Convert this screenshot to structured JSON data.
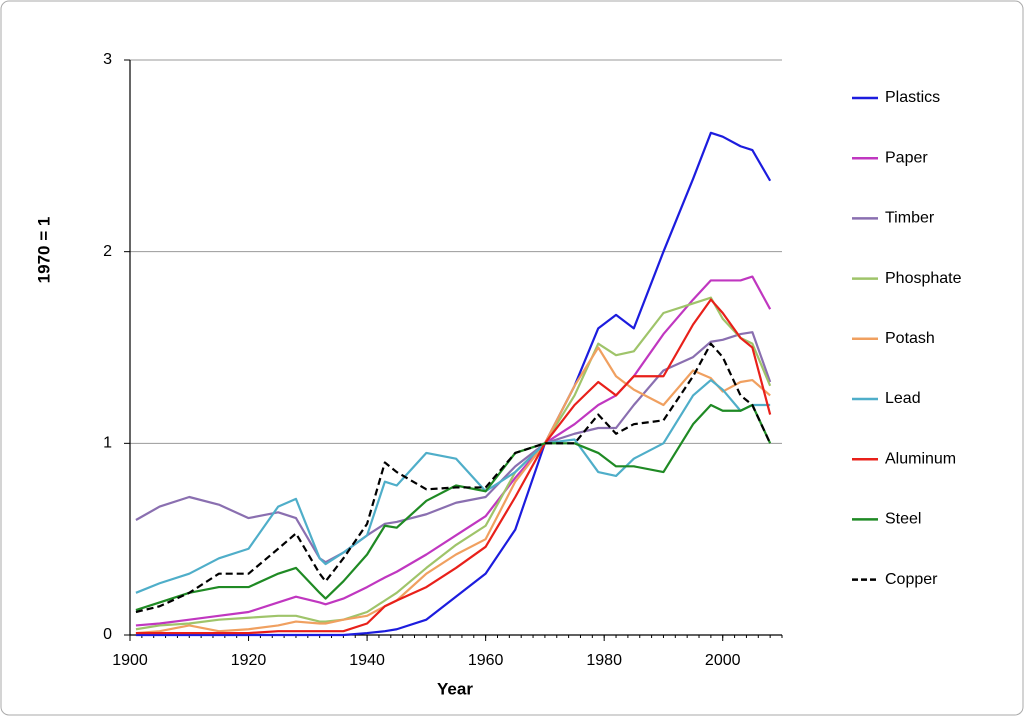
{
  "chart_data": {
    "type": "line",
    "xlabel": "Year",
    "ylabel": "1970 = 1",
    "x": [
      1901,
      1905,
      1910,
      1915,
      1920,
      1925,
      1928,
      1932,
      1933,
      1936,
      1940,
      1943,
      1945,
      1950,
      1955,
      1960,
      1965,
      1970,
      1975,
      1979,
      1982,
      1985,
      1990,
      1995,
      1998,
      2000,
      2003,
      2005,
      2008
    ],
    "xlim": [
      1900,
      2010
    ],
    "xticks": [
      1900,
      1920,
      1940,
      1960,
      1980,
      2000
    ],
    "ylim": [
      0,
      3
    ],
    "yticks": [
      0,
      1,
      2,
      3
    ],
    "grid": true,
    "legend": "right",
    "series": [
      {
        "name": "Plastics",
        "color": "#1c1cde",
        "values": [
          0,
          0,
          0,
          0,
          0,
          0,
          0,
          0,
          0,
          0,
          0.01,
          0.02,
          0.03,
          0.08,
          0.2,
          0.32,
          0.55,
          1.0,
          1.3,
          1.6,
          1.67,
          1.6,
          2.0,
          2.38,
          2.62,
          2.6,
          2.55,
          2.53,
          2.37
        ]
      },
      {
        "name": "Paper",
        "color": "#c037c0",
        "values": [
          0.05,
          0.06,
          0.08,
          0.1,
          0.12,
          0.17,
          0.2,
          0.17,
          0.16,
          0.19,
          0.25,
          0.3,
          0.33,
          0.42,
          0.52,
          0.62,
          0.82,
          1.0,
          1.1,
          1.2,
          1.25,
          1.35,
          1.57,
          1.75,
          1.85,
          1.85,
          1.85,
          1.87,
          1.7
        ]
      },
      {
        "name": "Timber",
        "color": "#8a6fb0",
        "values": [
          0.6,
          0.67,
          0.72,
          0.68,
          0.61,
          0.64,
          0.61,
          0.4,
          0.38,
          0.43,
          0.52,
          0.58,
          0.59,
          0.63,
          0.69,
          0.72,
          0.88,
          1.0,
          1.05,
          1.08,
          1.08,
          1.2,
          1.38,
          1.45,
          1.53,
          1.54,
          1.57,
          1.58,
          1.32
        ]
      },
      {
        "name": "Phosphate",
        "color": "#9fc46a",
        "values": [
          0.03,
          0.05,
          0.06,
          0.08,
          0.09,
          0.1,
          0.1,
          0.07,
          0.07,
          0.08,
          0.12,
          0.18,
          0.22,
          0.35,
          0.47,
          0.57,
          0.85,
          1.0,
          1.25,
          1.52,
          1.46,
          1.48,
          1.68,
          1.73,
          1.76,
          1.65,
          1.55,
          1.52,
          1.3
        ]
      },
      {
        "name": "Potash",
        "color": "#f0a060",
        "values": [
          0.01,
          0.02,
          0.05,
          0.02,
          0.03,
          0.05,
          0.07,
          0.06,
          0.06,
          0.08,
          0.1,
          0.15,
          0.18,
          0.32,
          0.42,
          0.5,
          0.8,
          1.0,
          1.3,
          1.5,
          1.35,
          1.28,
          1.2,
          1.38,
          1.34,
          1.27,
          1.32,
          1.33,
          1.25
        ]
      },
      {
        "name": "Lead",
        "color": "#4faec9",
        "values": [
          0.22,
          0.27,
          0.32,
          0.4,
          0.45,
          0.67,
          0.71,
          0.4,
          0.37,
          0.43,
          0.52,
          0.8,
          0.78,
          0.95,
          0.92,
          0.75,
          0.85,
          1.0,
          1.02,
          0.85,
          0.83,
          0.92,
          1.0,
          1.25,
          1.33,
          1.28,
          1.17,
          1.2,
          1.2
        ]
      },
      {
        "name": "Aluminum",
        "color": "#e8201a",
        "values": [
          0.01,
          0.01,
          0.01,
          0.01,
          0.01,
          0.02,
          0.02,
          0.02,
          0.02,
          0.02,
          0.06,
          0.15,
          0.18,
          0.25,
          0.35,
          0.46,
          0.72,
          1.0,
          1.2,
          1.32,
          1.25,
          1.35,
          1.35,
          1.62,
          1.75,
          1.68,
          1.55,
          1.5,
          1.15
        ]
      },
      {
        "name": "Steel",
        "color": "#1f8a24",
        "values": [
          0.13,
          0.17,
          0.22,
          0.25,
          0.25,
          0.32,
          0.35,
          0.22,
          0.19,
          0.28,
          0.42,
          0.57,
          0.56,
          0.7,
          0.78,
          0.75,
          0.95,
          1.0,
          1.0,
          0.95,
          0.88,
          0.88,
          0.85,
          1.1,
          1.2,
          1.17,
          1.17,
          1.2,
          1.0
        ]
      },
      {
        "name": "Copper",
        "color": "#000000",
        "line_style": "dashed",
        "values": [
          0.12,
          0.15,
          0.22,
          0.32,
          0.32,
          0.45,
          0.53,
          0.32,
          0.28,
          0.4,
          0.58,
          0.9,
          0.85,
          0.76,
          0.77,
          0.77,
          0.95,
          1.0,
          1.0,
          1.15,
          1.05,
          1.1,
          1.12,
          1.35,
          1.52,
          1.45,
          1.25,
          1.2,
          1.0
        ]
      }
    ]
  }
}
